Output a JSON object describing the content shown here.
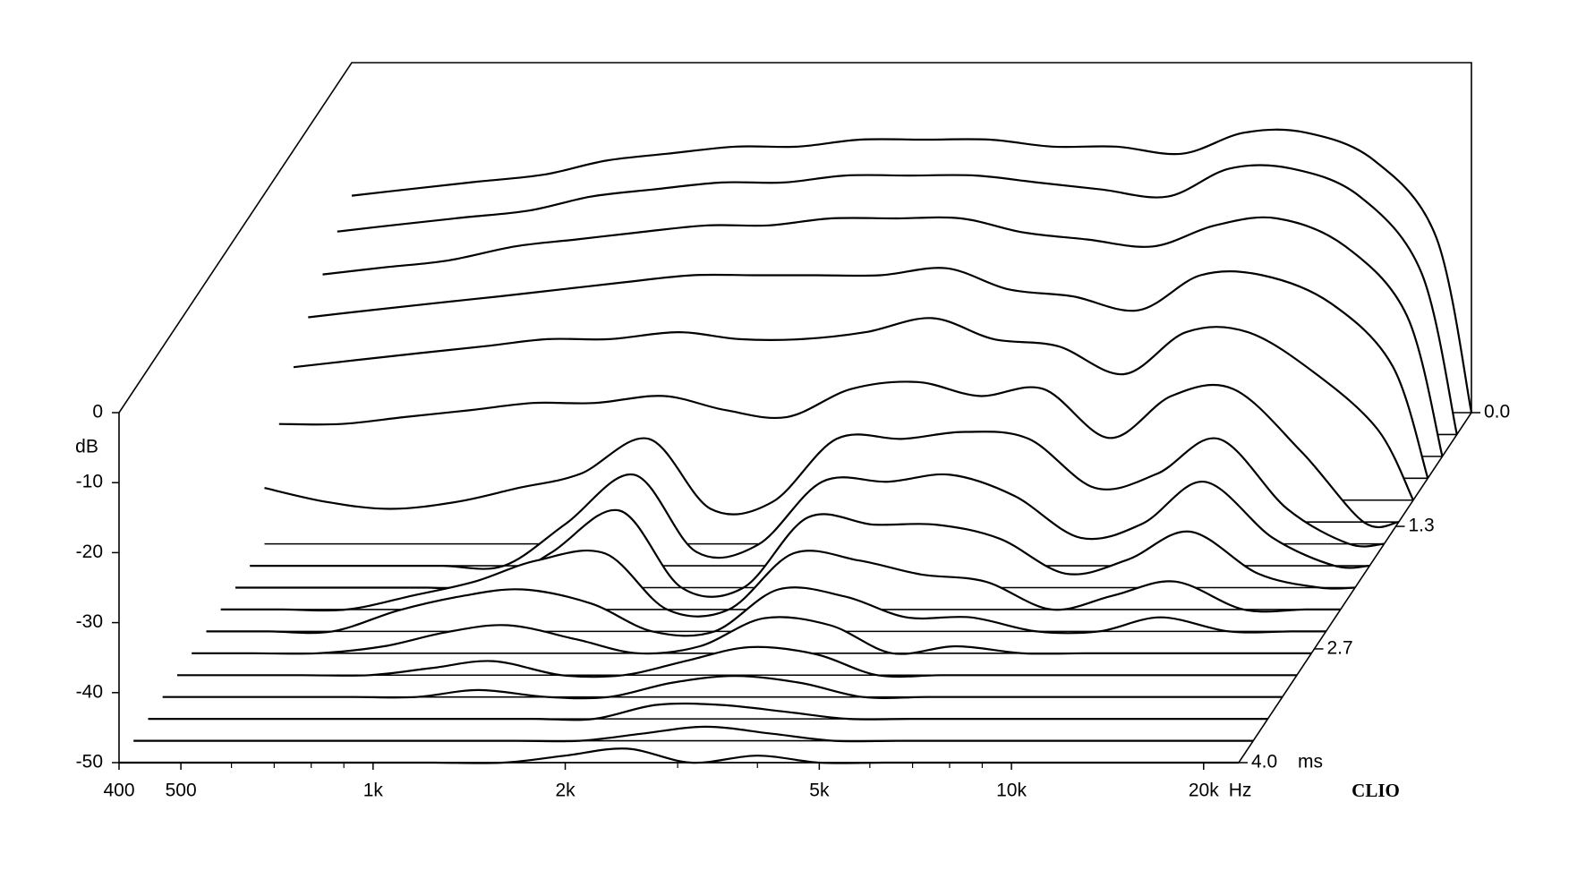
{
  "chart_data": {
    "type": "waterfall",
    "x": [
      400,
      500,
      630,
      800,
      1000,
      1250,
      1600,
      2000,
      2500,
      3150,
      4000,
      5000,
      6300,
      8000,
      10000,
      12500,
      16000,
      20000,
      22700
    ],
    "z": [
      0,
      0.25,
      0.5,
      0.75,
      1,
      1.25,
      1.5,
      1.75,
      2,
      2.25,
      2.5,
      2.75,
      3,
      3.25,
      3.5,
      3.75,
      4
    ],
    "values": [
      [
        -19,
        -18,
        -17,
        -16,
        -14,
        -13,
        -12,
        -12,
        -11,
        -11,
        -11,
        -12,
        -12,
        -13,
        -10,
        -10,
        -14,
        -25,
        -50
      ],
      [
        -21,
        -20,
        -19,
        -18,
        -16,
        -15,
        -14,
        -14,
        -13,
        -13,
        -13,
        -14,
        -15,
        -16,
        -12,
        -12,
        -16,
        -27,
        -50
      ],
      [
        -24,
        -23,
        -22,
        -20,
        -19,
        -18,
        -17,
        -17,
        -16,
        -16,
        -16,
        -18,
        -19,
        -20,
        -17,
        -16,
        -20,
        -30,
        -50
      ],
      [
        -27,
        -26,
        -25,
        -24,
        -23,
        -22,
        -21,
        -21,
        -21,
        -21,
        -20,
        -23,
        -24,
        -26,
        -21,
        -21,
        -25,
        -34,
        -50
      ],
      [
        -31,
        -30,
        -29,
        -28,
        -27,
        -27,
        -26,
        -27,
        -27,
        -26,
        -24,
        -27,
        -28,
        -32,
        -26,
        -26,
        -32,
        -40,
        -50
      ],
      [
        -36,
        -36,
        -35,
        -34,
        -33,
        -33,
        -32,
        -34,
        -35,
        -31,
        -30,
        -32,
        -31,
        -38,
        -32,
        -31,
        -40,
        -50,
        -50
      ],
      [
        -42,
        -44,
        -45,
        -44,
        -42,
        -40,
        -35,
        -45,
        -44,
        -35,
        -35,
        -34,
        -35,
        -42,
        -40,
        -35,
        -45,
        -50,
        -50
      ],
      [
        -50,
        -50,
        -50,
        -50,
        -50,
        -44,
        -37,
        -48,
        -47,
        -38,
        -38,
        -37,
        -40,
        -46,
        -44,
        -38,
        -46,
        -50,
        -50
      ],
      [
        -50,
        -50,
        -50,
        -50,
        -50,
        -45,
        -39,
        -50,
        -50,
        -40,
        -41,
        -41,
        -43,
        -48,
        -46,
        -42,
        -48,
        -50,
        -50
      ],
      [
        -50,
        -50,
        -50,
        -48,
        -46,
        -43,
        -42,
        -50,
        -50,
        -42,
        -43,
        -45,
        -46,
        -50,
        -48,
        -46,
        -50,
        -50,
        -50
      ],
      [
        -50,
        -50,
        -50,
        -47,
        -45,
        -44,
        -46,
        -50,
        -50,
        -44,
        -45,
        -48,
        -48,
        -50,
        -50,
        -48,
        -50,
        -50,
        -50
      ],
      [
        -50,
        -50,
        -50,
        -49,
        -47,
        -46,
        -48,
        -50,
        -49,
        -45,
        -46,
        -50,
        -49,
        -50,
        -50,
        -50,
        -50,
        -50,
        -50
      ],
      [
        -50,
        -50,
        -50,
        -50,
        -49,
        -48,
        -50,
        -50,
        -48,
        -46,
        -47,
        -50,
        -50,
        -50,
        -50,
        -50,
        -50,
        -50,
        -50
      ],
      [
        -50,
        -50,
        -50,
        -50,
        -50,
        -49,
        -50,
        -50,
        -48,
        -47,
        -48,
        -50,
        -50,
        -50,
        -50,
        -50,
        -50,
        -50,
        -50
      ],
      [
        -50,
        -50,
        -50,
        -50,
        -50,
        -50,
        -50,
        -50,
        -48,
        -48,
        -49,
        -50,
        -50,
        -50,
        -50,
        -50,
        -50,
        -50,
        -50
      ],
      [
        -50,
        -50,
        -50,
        -50,
        -50,
        -50,
        -50,
        -50,
        -49,
        -48,
        -49,
        -50,
        -50,
        -50,
        -50,
        -50,
        -50,
        -50,
        -50
      ],
      [
        -50,
        -50,
        -50,
        -50,
        -50,
        -50,
        -50,
        -49,
        -48,
        -50,
        -49,
        -50,
        -50,
        -50,
        -50,
        -50,
        -50,
        -50,
        -50
      ]
    ],
    "xlim": [
      400,
      22700
    ],
    "xlog": true,
    "xticks": [
      400,
      500,
      {
        "value": 1000,
        "label": "1k"
      },
      {
        "value": 2000,
        "label": "2k"
      },
      {
        "value": 5000,
        "label": "5k"
      },
      {
        "value": 10000,
        "label": "10k"
      },
      {
        "value": 20000,
        "label": "20k"
      }
    ],
    "xminorticks": [
      600,
      700,
      800,
      900,
      3000,
      4000,
      6000,
      7000,
      8000,
      9000
    ],
    "xlabel": "Hz",
    "ylim": [
      -50,
      0
    ],
    "yticks": [
      0,
      -10,
      -20,
      -30,
      -40,
      -50
    ],
    "ylabel": "dB",
    "zlim": [
      0,
      4
    ],
    "zticks": [
      {
        "value": 0,
        "label": "0.0"
      },
      1.3,
      2.7,
      {
        "value": 4,
        "label": "4.0"
      }
    ],
    "zlabel": "ms",
    "brand": "CLIO",
    "color": "#000000"
  }
}
